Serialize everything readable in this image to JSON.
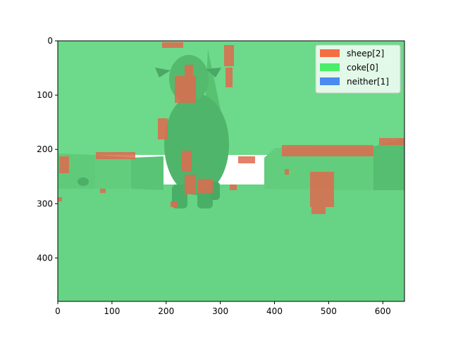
{
  "figure": {
    "image_extent": {
      "x": [
        0,
        640
      ],
      "y": [
        480,
        0
      ]
    },
    "x_ticks": [
      0,
      100,
      200,
      300,
      400,
      500,
      600
    ],
    "y_ticks": [
      0,
      100,
      200,
      300,
      400
    ],
    "legend": {
      "placement": "top-right",
      "entries": [
        {
          "label": "sheep[2]",
          "color": "#f46d43"
        },
        {
          "label": "coke[0]",
          "color": "#4ded6a"
        },
        {
          "label": "neither[1]",
          "color": "#4b8af1"
        }
      ]
    },
    "colors": {
      "overlay_green": "#6dd98a",
      "ground_green": "#66d385",
      "wall_green": "#5ec878",
      "sheep_body": "#4fb56a",
      "sheep_mask": "#e06a4f"
    }
  }
}
